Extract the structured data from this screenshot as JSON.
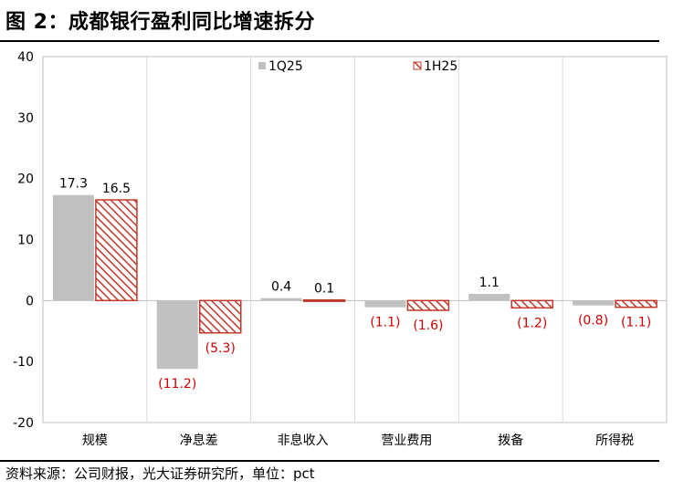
{
  "header": {
    "title": "图 2：成都银行盈利同比增速拆分"
  },
  "footer": {
    "source": "资料来源：公司财报，光大证券研究所，单位：pct"
  },
  "chart_data": {
    "type": "bar",
    "categories": [
      "规模",
      "净息差",
      "非息收入",
      "营业费用",
      "拨备",
      "所得税"
    ],
    "series": [
      {
        "name": "1Q25",
        "values": [
          17.3,
          -11.2,
          0.4,
          -1.1,
          1.1,
          -0.8
        ],
        "labels": [
          "17.3",
          "(11.2)",
          "0.4",
          "(1.1)",
          "1.1",
          "(0.8)"
        ],
        "color": "#c0c0c0",
        "pattern": "solid"
      },
      {
        "name": "1H25",
        "values": [
          16.5,
          -5.3,
          0.1,
          -1.6,
          -1.2,
          -1.1
        ],
        "labels": [
          "16.5",
          "(5.3)",
          "0.1",
          "(1.6)",
          "(1.2)",
          "(1.1)"
        ],
        "color": "#c0392b",
        "pattern": "diagonal-hatch"
      }
    ],
    "ylim": [
      -20,
      40
    ],
    "yticks": [
      "-20",
      "-10",
      "0",
      "10",
      "20",
      "30",
      "40"
    ],
    "ytick_values": [
      -20,
      -10,
      0,
      10,
      20,
      30,
      40
    ],
    "negative_label_color": "#cc0000",
    "legend_position": "top-center",
    "vertical_category_separators": true
  }
}
